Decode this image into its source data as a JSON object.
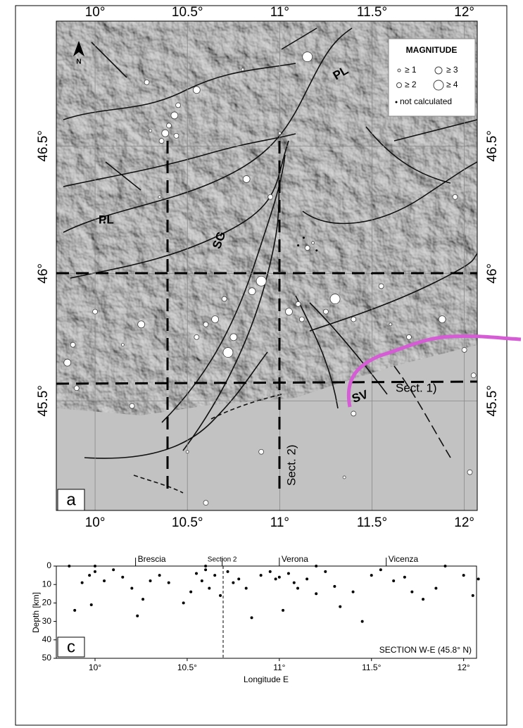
{
  "map": {
    "lonlim": [
      9.79,
      12.07
    ],
    "latlim": [
      45.07,
      46.99
    ],
    "lon_ticks": [
      {
        "value": 10,
        "label": "10°"
      },
      {
        "value": 10.5,
        "label": "10.5°"
      },
      {
        "value": 11,
        "label": "11°"
      },
      {
        "value": 11.5,
        "label": "11.5°"
      },
      {
        "value": 12,
        "label": "12°"
      }
    ],
    "lat_ticks": [
      {
        "value": 46.5,
        "label": "46.5°"
      },
      {
        "value": 46,
        "label": "46°"
      },
      {
        "value": 45.5,
        "label": "45.5°"
      }
    ],
    "legend": {
      "title": "MAGNITUDE",
      "items": [
        "≥ 1",
        "≥ 2",
        "≥ 3",
        "≥ 4",
        "not calculated"
      ]
    },
    "labels": {
      "north": "N",
      "pl_east": "PL",
      "pl_west": "PL",
      "sg": "SG",
      "sv": "SV",
      "sect1": "Sect. 1)",
      "sect2": "Sect. 2)",
      "panel": "a"
    },
    "events": {
      "lon": [
        10.43,
        10.45,
        10.4,
        10.36,
        10.38,
        10.3,
        10.44,
        10.55,
        10.28,
        10.8,
        11.15,
        10.95,
        10.82,
        11.15,
        11.18,
        11.13,
        11.2,
        11.1,
        10.85,
        10.9,
        10.7,
        10.6,
        10.75,
        10.72,
        10.55,
        10.65,
        11.05,
        11.1,
        11.12,
        11.3,
        11.25,
        11.4,
        11.6,
        11.88,
        12.0,
        9.85,
        9.88,
        10.0,
        10.25,
        10.15,
        9.9,
        10.2,
        10.5,
        10.9,
        11.4,
        11.35,
        12.03,
        10.6,
        11.0,
        11.95,
        11.55,
        10.35,
        11.7,
        10.05,
        11.5,
        12.05
      ],
      "lat": [
        46.62,
        46.66,
        46.58,
        46.52,
        46.55,
        46.56,
        46.54,
        46.72,
        46.75,
        46.8,
        46.85,
        46.3,
        46.37,
        46.1,
        46.12,
        46.14,
        46.09,
        46.11,
        45.93,
        45.97,
        45.9,
        45.8,
        45.75,
        45.69,
        45.75,
        45.82,
        45.85,
        45.88,
        45.82,
        45.9,
        45.85,
        45.82,
        45.8,
        45.82,
        45.7,
        45.65,
        45.72,
        45.85,
        45.8,
        45.72,
        45.55,
        45.48,
        45.3,
        45.3,
        45.45,
        45.2,
        45.22,
        45.1,
        46.55,
        46.3,
        45.95,
        46.3,
        45.75,
        46.2,
        46.0,
        45.6
      ],
      "mag": [
        3,
        2,
        2,
        2,
        3,
        1,
        2,
        3,
        2,
        1,
        4,
        2,
        3,
        2,
        1,
        null,
        null,
        null,
        3,
        4,
        2,
        2,
        3,
        4,
        2,
        3,
        3,
        2,
        2,
        4,
        2,
        2,
        1,
        3,
        2,
        3,
        2,
        2,
        3,
        1,
        2,
        2,
        1,
        2,
        2,
        1,
        2,
        2,
        1,
        2,
        2,
        1,
        2,
        null,
        null,
        2
      ]
    }
  },
  "chart_data": {
    "type": "scatter",
    "title": "SECTION W-E  (45.8° N)",
    "x_label": "Longitude E",
    "y_label": "Depth [km]",
    "panel": "c",
    "xlim": [
      9.79,
      12.07
    ],
    "ylim": [
      0,
      50
    ],
    "y_inverted": true,
    "xticks": [
      {
        "value": 10,
        "label": "10°"
      },
      {
        "value": 10.5,
        "label": "10.5°"
      },
      {
        "value": 11,
        "label": "11°"
      },
      {
        "value": 11.5,
        "label": "11.5°"
      },
      {
        "value": 12,
        "label": "12°"
      }
    ],
    "yticks": [
      0,
      10,
      20,
      30,
      40,
      50
    ],
    "places": {
      "names": [
        "Brescia",
        "Section 2",
        "Verona",
        "Vicenza"
      ],
      "lon": [
        10.22,
        10.69,
        11.0,
        11.58
      ]
    },
    "color": "#000000",
    "x": [
      9.86,
      9.93,
      9.97,
      10.0,
      10.05,
      10.1,
      9.89,
      9.98,
      10.15,
      10.2,
      10.23,
      10.26,
      10.3,
      10.35,
      10.4,
      10.48,
      10.52,
      10.55,
      10.58,
      10.6,
      10.62,
      10.65,
      10.68,
      10.72,
      10.75,
      10.78,
      10.82,
      10.85,
      10.9,
      10.95,
      10.98,
      11.0,
      11.02,
      11.05,
      11.08,
      11.1,
      11.15,
      11.2,
      11.25,
      11.3,
      11.33,
      11.4,
      11.45,
      11.5,
      11.55,
      11.62,
      11.68,
      11.72,
      11.78,
      11.85,
      11.9,
      12.0,
      12.05,
      12.08,
      10.0,
      10.6,
      11.2
    ],
    "values": [
      0,
      9,
      5,
      3,
      8,
      2,
      24,
      21,
      6,
      12,
      27,
      18,
      8,
      5,
      9,
      20,
      14,
      4,
      8,
      2,
      12,
      5,
      16,
      3,
      9,
      7,
      12,
      28,
      5,
      3,
      7,
      6,
      24,
      4,
      9,
      12,
      7,
      15,
      3,
      11,
      22,
      14,
      30,
      5,
      2,
      8,
      6,
      14,
      18,
      12,
      0,
      5,
      16,
      7,
      0,
      0,
      0
    ]
  }
}
